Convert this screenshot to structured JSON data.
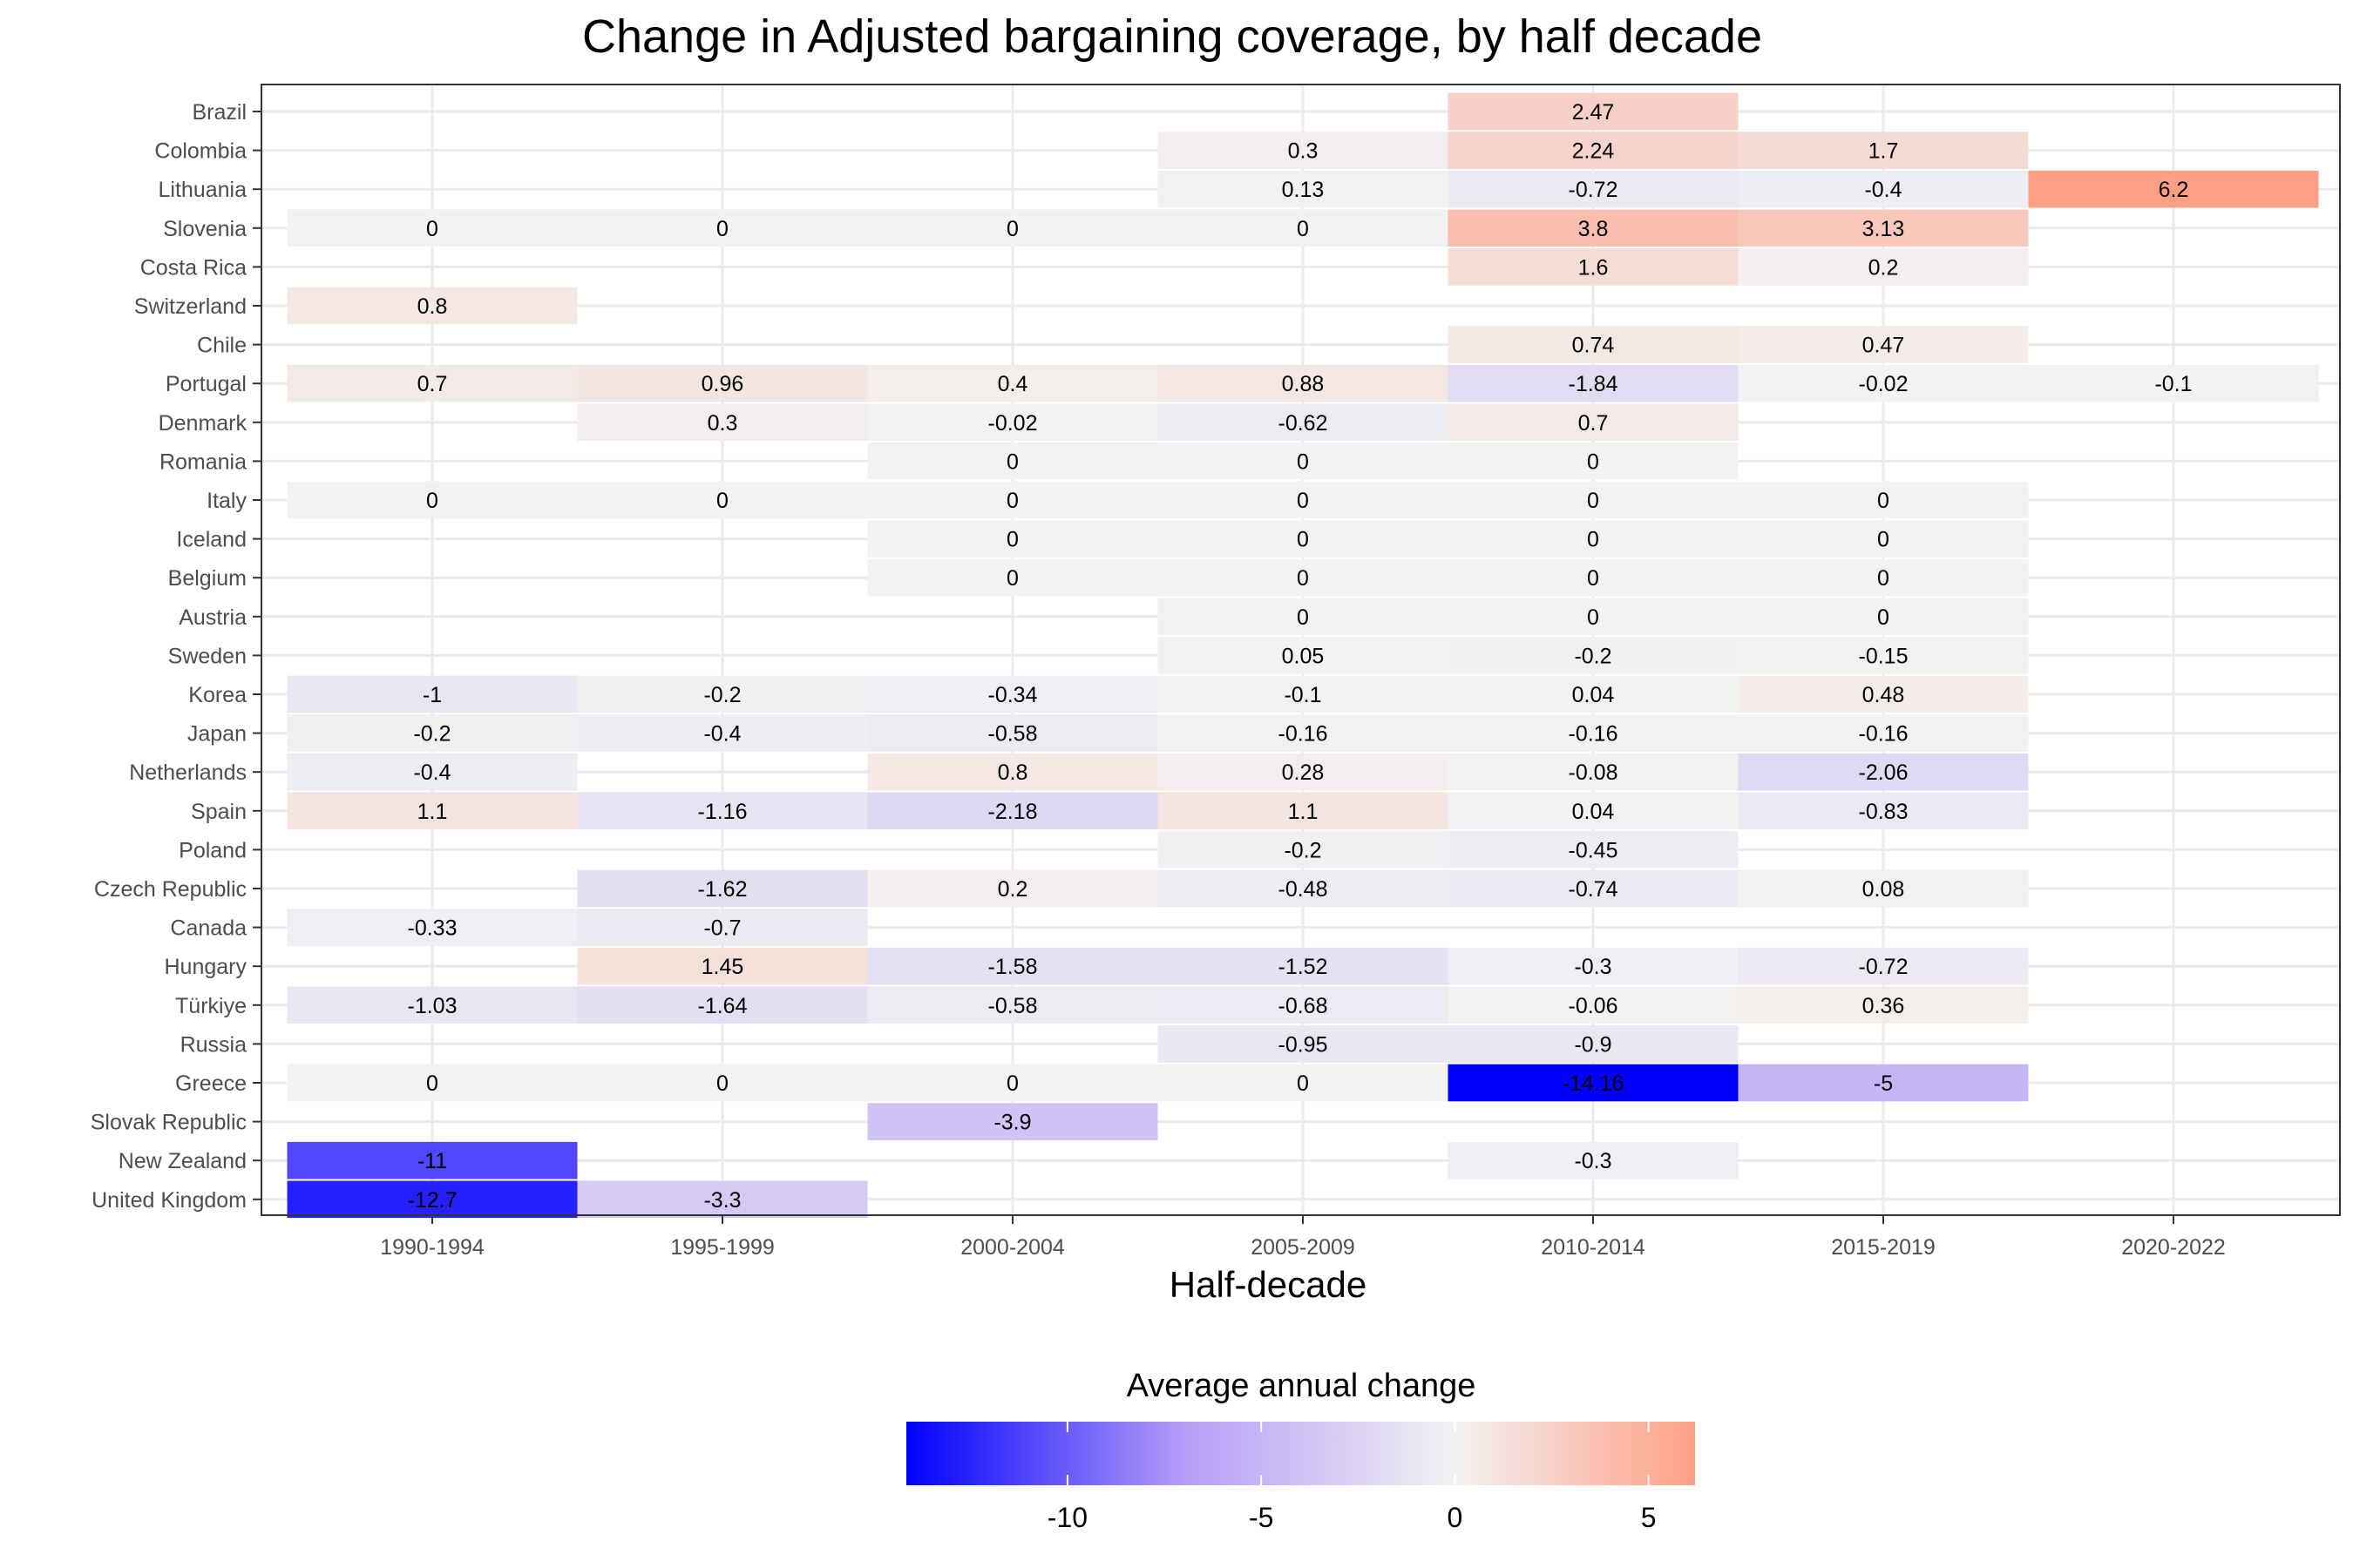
{
  "chart_data": {
    "type": "heatmap",
    "title": "Change in Adjusted bargaining coverage, by half decade",
    "xlabel": "Half-decade",
    "ylabel": "",
    "x_categories": [
      "1990-1994",
      "1995-1999",
      "2000-2004",
      "2005-2009",
      "2010-2014",
      "2015-2019",
      "2020-2022"
    ],
    "y_categories": [
      "Brazil",
      "Colombia",
      "Lithuania",
      "Slovenia",
      "Costa Rica",
      "Switzerland",
      "Chile",
      "Portugal",
      "Denmark",
      "Romania",
      "Italy",
      "Iceland",
      "Belgium",
      "Austria",
      "Sweden",
      "Korea",
      "Japan",
      "Netherlands",
      "Spain",
      "Poland",
      "Czech Republic",
      "Canada",
      "Hungary",
      "Türkiye",
      "Russia",
      "Greece",
      "Slovak Republic",
      "New Zealand",
      "United Kingdom"
    ],
    "values": [
      [
        null,
        null,
        null,
        null,
        2.47,
        null,
        null
      ],
      [
        null,
        null,
        null,
        0.3,
        2.24,
        1.7,
        null
      ],
      [
        null,
        null,
        null,
        0.13,
        -0.72,
        -0.4,
        6.2
      ],
      [
        0,
        0,
        0,
        0,
        3.8,
        3.13,
        null
      ],
      [
        null,
        null,
        null,
        null,
        1.6,
        0.2,
        null
      ],
      [
        0.8,
        null,
        null,
        null,
        null,
        null,
        null
      ],
      [
        null,
        null,
        null,
        null,
        0.74,
        0.47,
        null
      ],
      [
        0.7,
        0.96,
        0.4,
        0.88,
        -1.84,
        -0.02,
        -0.1
      ],
      [
        null,
        0.3,
        -0.02,
        -0.62,
        0.7,
        null,
        null
      ],
      [
        null,
        null,
        0,
        0,
        0,
        null,
        null
      ],
      [
        0,
        0,
        0,
        0,
        0,
        0,
        null
      ],
      [
        null,
        null,
        0,
        0,
        0,
        0,
        null
      ],
      [
        null,
        null,
        0,
        0,
        0,
        0,
        null
      ],
      [
        null,
        null,
        null,
        0,
        0,
        0,
        null
      ],
      [
        null,
        null,
        null,
        0.05,
        -0.2,
        -0.15,
        null
      ],
      [
        -1,
        -0.2,
        -0.34,
        -0.1,
        0.04,
        0.48,
        null
      ],
      [
        -0.2,
        -0.4,
        -0.58,
        -0.16,
        -0.16,
        -0.16,
        null
      ],
      [
        -0.4,
        null,
        0.8,
        0.28,
        -0.08,
        -2.06,
        null
      ],
      [
        1.1,
        -1.16,
        -2.18,
        1.1,
        0.04,
        -0.83,
        null
      ],
      [
        null,
        null,
        null,
        -0.2,
        -0.45,
        null,
        null
      ],
      [
        null,
        -1.62,
        0.2,
        -0.48,
        -0.74,
        0.08,
        null
      ],
      [
        -0.33,
        -0.7,
        null,
        null,
        null,
        null,
        null
      ],
      [
        null,
        1.45,
        -1.58,
        -1.52,
        -0.3,
        -0.72,
        null
      ],
      [
        -1.03,
        -1.64,
        -0.58,
        -0.68,
        -0.06,
        0.36,
        null
      ],
      [
        null,
        null,
        null,
        -0.95,
        -0.9,
        null,
        null
      ],
      [
        0,
        0,
        0,
        0,
        -14.16,
        -5,
        null
      ],
      [
        null,
        null,
        -3.9,
        null,
        null,
        null,
        null
      ],
      [
        -11,
        null,
        null,
        null,
        -0.3,
        null,
        null
      ],
      [
        -12.7,
        -3.3,
        null,
        null,
        null,
        null,
        null
      ]
    ],
    "legend": {
      "title": "Average annual change",
      "position": "bottom",
      "ticks": [
        -10,
        -5,
        0,
        5
      ],
      "range": [
        -14.16,
        6.2
      ]
    },
    "colors": {
      "low": "#0000ff",
      "mid": "#f2f2f2",
      "high": "#ff9f85"
    },
    "grid": true
  }
}
